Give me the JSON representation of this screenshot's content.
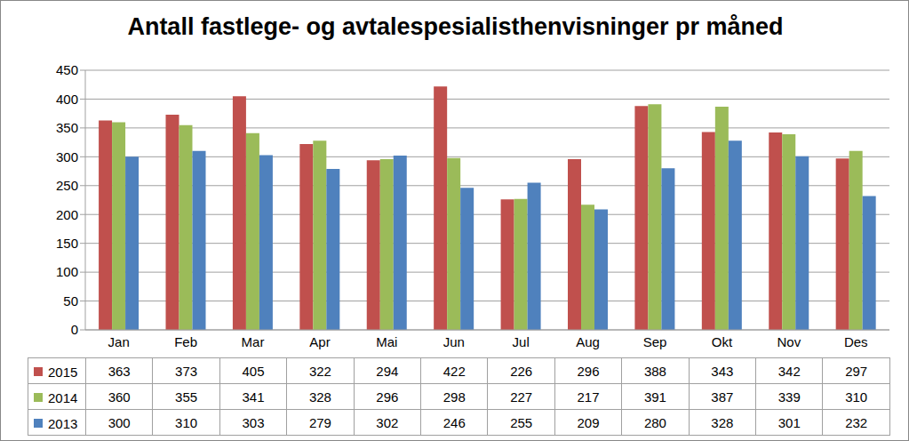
{
  "chart_data": {
    "type": "bar",
    "title": "Antall fastlege- og avtalespesialisthenvisninger pr måned",
    "categories": [
      "Jan",
      "Feb",
      "Mar",
      "Apr",
      "Mai",
      "Jun",
      "Jul",
      "Aug",
      "Sep",
      "Okt",
      "Nov",
      "Des"
    ],
    "series": [
      {
        "name": "2015",
        "color": "#c0504d",
        "values": [
          363,
          373,
          405,
          322,
          294,
          422,
          226,
          296,
          388,
          343,
          342,
          297
        ]
      },
      {
        "name": "2014",
        "color": "#9bbb59",
        "values": [
          360,
          355,
          341,
          328,
          296,
          298,
          227,
          217,
          391,
          387,
          339,
          310
        ]
      },
      {
        "name": "2013",
        "color": "#4f81bd",
        "values": [
          300,
          310,
          303,
          279,
          302,
          246,
          255,
          209,
          280,
          328,
          301,
          232
        ]
      }
    ],
    "ylim": [
      0,
      450
    ],
    "yticks": [
      0,
      50,
      100,
      150,
      200,
      250,
      300,
      350,
      400,
      450
    ],
    "grid": true,
    "legend": "bottom"
  }
}
